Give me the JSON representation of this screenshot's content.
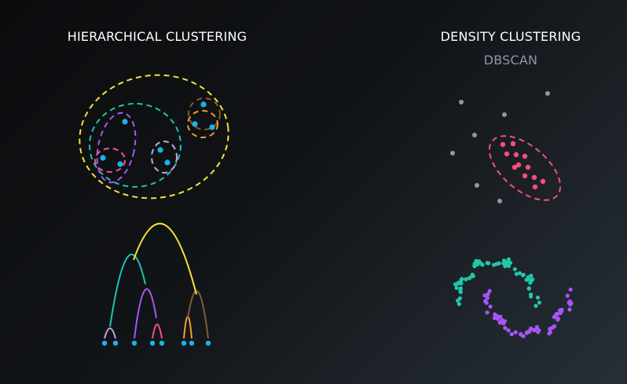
{
  "left_panel": {
    "title": "HIERARCHICAL CLUSTERING"
  },
  "right_panel": {
    "title": "DENSITY CLUSTERING",
    "subtitle": "DBSCAN"
  },
  "colors": {
    "point": "#1ab4e8",
    "yellow": "#f5e23c",
    "teal": "#1fc3b0",
    "purple": "#a855f7",
    "pink": "#ff4d8d",
    "lavender": "#c6a4e6",
    "orange": "#f59e2e",
    "brown": "#8b5a2b",
    "noise": "#8e98a6",
    "dbscan_cluster": "#ff4d7a",
    "moon_teal": "#22c7a9",
    "moon_purple": "#a855f7"
  }
}
